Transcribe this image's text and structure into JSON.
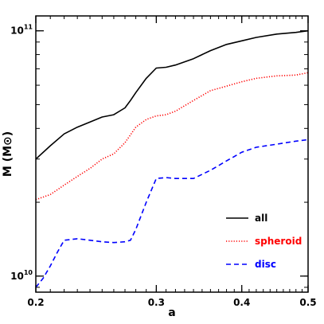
{
  "chart_data": {
    "type": "line",
    "xlabel": "a",
    "ylabel": "M (M⊙)",
    "x_scale": "log",
    "y_scale": "log",
    "xlim": [
      0.2,
      0.5
    ],
    "ylim": [
      8600000000.0,
      115000000000.0
    ],
    "x_ticks": [
      {
        "value": 0.2,
        "label": "0.2"
      },
      {
        "value": 0.3,
        "label": "0.3"
      },
      {
        "value": 0.4,
        "label": "0.4"
      },
      {
        "value": 0.5,
        "label": "0.5"
      }
    ],
    "y_ticks": [
      {
        "value": 10000000000.0,
        "base": "10",
        "exp": "10"
      },
      {
        "value": 100000000000.0,
        "base": "10",
        "exp": "11"
      }
    ],
    "legend": {
      "placement": "lower-right"
    },
    "series": [
      {
        "name": "all",
        "color": "#000000",
        "style": "solid",
        "x": [
          0.2,
          0.21,
          0.22,
          0.23,
          0.24,
          0.25,
          0.26,
          0.27,
          0.275,
          0.28,
          0.29,
          0.3,
          0.31,
          0.32,
          0.34,
          0.36,
          0.38,
          0.4,
          0.42,
          0.45,
          0.48,
          0.5
        ],
        "y": [
          30000000000.0,
          34000000000.0,
          38000000000.0,
          40500000000.0,
          42500000000.0,
          44500000000.0,
          45500000000.0,
          48500000000.0,
          52000000000.0,
          56000000000.0,
          64000000000.0,
          70500000000.0,
          71000000000.0,
          72500000000.0,
          77000000000.0,
          83000000000.0,
          88000000000.0,
          91000000000.0,
          94000000000.0,
          97000000000.0,
          98500000000.0,
          100000000000.0
        ]
      },
      {
        "name": "spheroid",
        "color": "#ff0000",
        "style": "dotted",
        "x": [
          0.2,
          0.21,
          0.22,
          0.23,
          0.24,
          0.25,
          0.26,
          0.27,
          0.28,
          0.29,
          0.3,
          0.31,
          0.32,
          0.34,
          0.36,
          0.38,
          0.4,
          0.42,
          0.45,
          0.48,
          0.5
        ],
        "y": [
          20500000000.0,
          21500000000.0,
          23500000000.0,
          25500000000.0,
          27500000000.0,
          30000000000.0,
          31500000000.0,
          35000000000.0,
          40500000000.0,
          43500000000.0,
          45000000000.0,
          45500000000.0,
          47000000000.0,
          52000000000.0,
          57000000000.0,
          59500000000.0,
          62000000000.0,
          64000000000.0,
          65500000000.0,
          66000000000.0,
          67500000000.0
        ]
      },
      {
        "name": "disc",
        "color": "#0000ff",
        "style": "dashed",
        "x": [
          0.2,
          0.205,
          0.21,
          0.215,
          0.22,
          0.23,
          0.24,
          0.25,
          0.26,
          0.27,
          0.275,
          0.28,
          0.29,
          0.3,
          0.31,
          0.32,
          0.34,
          0.36,
          0.38,
          0.4,
          0.42,
          0.45,
          0.48,
          0.5
        ],
        "y": [
          9000000000.0,
          9800000000.0,
          11000000000.0,
          12500000000.0,
          14000000000.0,
          14200000000.0,
          14000000000.0,
          13800000000.0,
          13700000000.0,
          13800000000.0,
          14000000000.0,
          15500000000.0,
          20000000000.0,
          25000000000.0,
          25200000000.0,
          25000000000.0,
          25000000000.0,
          27000000000.0,
          29500000000.0,
          32000000000.0,
          33500000000.0,
          34500000000.0,
          35500000000.0,
          36000000000.0
        ]
      }
    ]
  }
}
